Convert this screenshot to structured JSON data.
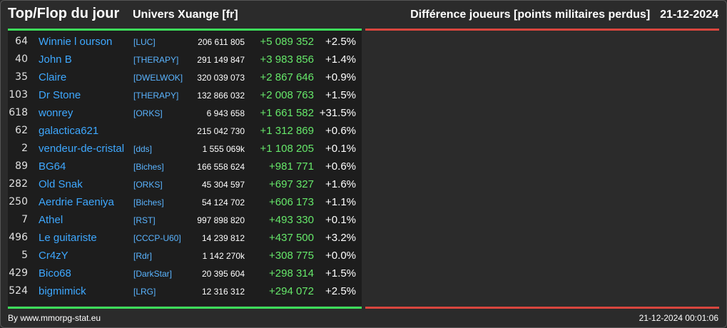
{
  "header": {
    "title": "Top/Flop du jour",
    "universe": "Univers Xuange [fr]",
    "metric": "Différence joueurs [points militaires perdus]",
    "date": "21-12-2024"
  },
  "colors": {
    "gain": "#66e86a",
    "player_link": "#3ea8ff",
    "alliance_tag": "#5ab4ff",
    "top_rule": "#3ddc5a",
    "flop_rule": "#d9463e"
  },
  "top": [
    {
      "rank": "64",
      "name": "Winnie l ourson",
      "alliance": "[LUC]",
      "points": "206 611 805",
      "diff": "+5 089 352",
      "pct": "+2.5%"
    },
    {
      "rank": "40",
      "name": "John B",
      "alliance": "[THERAPY]",
      "points": "291 149 847",
      "diff": "+3 983 856",
      "pct": "+1.4%"
    },
    {
      "rank": "35",
      "name": "Claire",
      "alliance": "[DWELWOK]",
      "points": "320 039 073",
      "diff": "+2 867 646",
      "pct": "+0.9%"
    },
    {
      "rank": "103",
      "name": "Dr Stone",
      "alliance": "[THERAPY]",
      "points": "132 866 032",
      "diff": "+2 008 763",
      "pct": "+1.5%"
    },
    {
      "rank": "618",
      "name": "wonrey",
      "alliance": "[ORKS]",
      "points": "6 943 658",
      "diff": "+1 661 582",
      "pct": "+31.5%"
    },
    {
      "rank": "62",
      "name": "galactica621",
      "alliance": "",
      "points": "215 042 730",
      "diff": "+1 312 869",
      "pct": "+0.6%"
    },
    {
      "rank": "2",
      "name": "vendeur-de-cristal",
      "alliance": "[dds]",
      "points": "1 555 069k",
      "diff": "+1 108 205",
      "pct": "+0.1%"
    },
    {
      "rank": "89",
      "name": "BG64",
      "alliance": "[Biches]",
      "points": "166 558 624",
      "diff": "+981 771",
      "pct": "+0.6%"
    },
    {
      "rank": "282",
      "name": "Old Snak",
      "alliance": "[ORKS]",
      "points": "45 304 597",
      "diff": "+697 327",
      "pct": "+1.6%"
    },
    {
      "rank": "250",
      "name": "Aerdrie Faeniya",
      "alliance": "[Biches]",
      "points": "54 124 702",
      "diff": "+606 173",
      "pct": "+1.1%"
    },
    {
      "rank": "7",
      "name": "Athel",
      "alliance": "[RST]",
      "points": "997 898 820",
      "diff": "+493 330",
      "pct": "+0.1%"
    },
    {
      "rank": "496",
      "name": "Le guitariste",
      "alliance": "[CCCP-U60]",
      "points": "14 239 812",
      "diff": "+437 500",
      "pct": "+3.2%"
    },
    {
      "rank": "5",
      "name": "Cr4zY",
      "alliance": "[Rdr]",
      "points": "1 142 270k",
      "diff": "+308 775",
      "pct": "+0.0%"
    },
    {
      "rank": "429",
      "name": "Bico68",
      "alliance": "[DarkStar]",
      "points": "20 395 604",
      "diff": "+298 314",
      "pct": "+1.5%"
    },
    {
      "rank": "524",
      "name": "bigmimick",
      "alliance": "[LRG]",
      "points": "12 316 312",
      "diff": "+294 072",
      "pct": "+2.5%"
    }
  ],
  "footer": {
    "credit": "By www.mmorpg-stat.eu",
    "timestamp": "21-12-2024 00:01:06"
  }
}
